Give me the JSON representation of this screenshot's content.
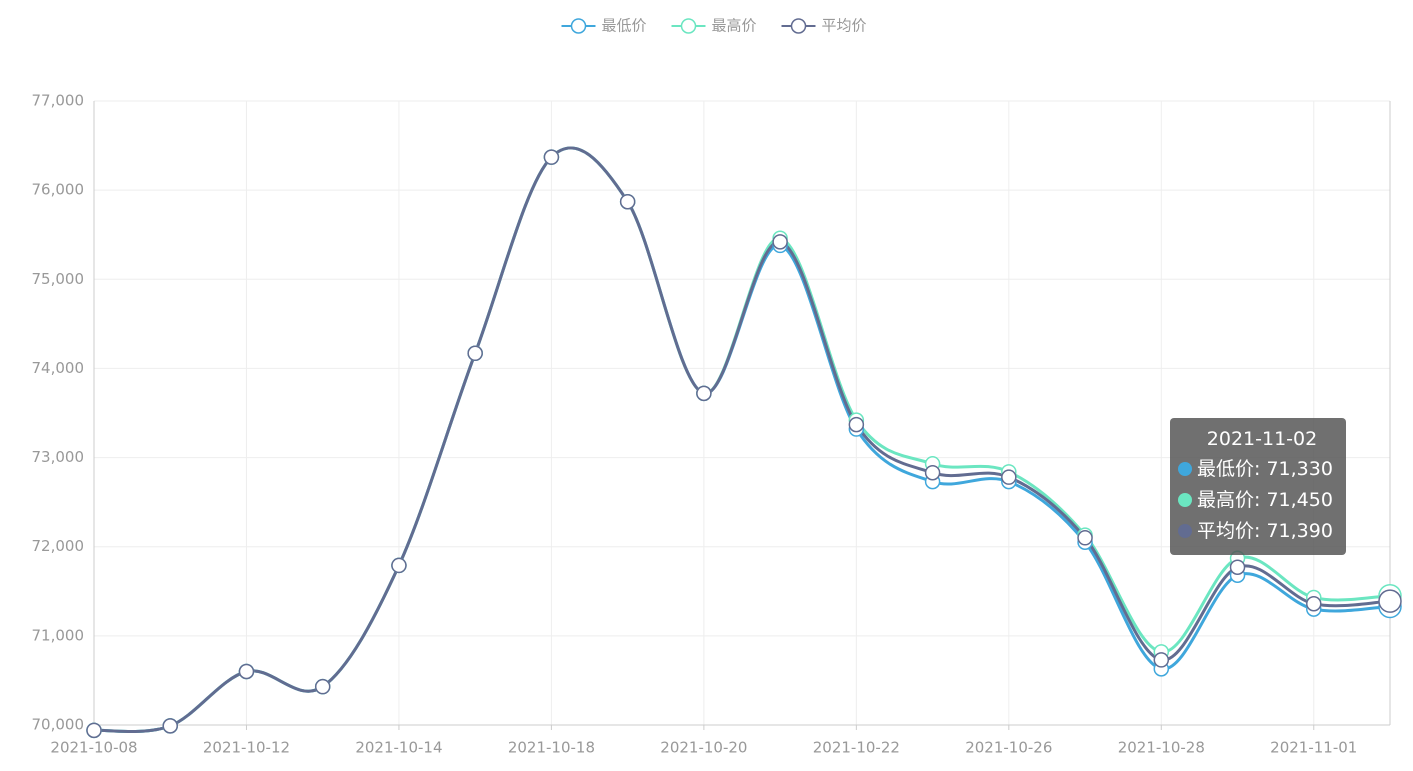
{
  "chart_data": {
    "type": "line",
    "categories": [
      "2021-10-08",
      null,
      "2021-10-12",
      null,
      "2021-10-14",
      null,
      "2021-10-18",
      null,
      "2021-10-20",
      null,
      "2021-10-22",
      null,
      "2021-10-26",
      null,
      "2021-10-28",
      null,
      "2021-11-01",
      "2021-11-02"
    ],
    "xlabel_interval": 2,
    "series": [
      {
        "name": "最低价",
        "color": "#3fa7dc",
        "values": [
          69940,
          69990,
          70600,
          70430,
          71790,
          74170,
          76370,
          75870,
          73720,
          75380,
          73320,
          72730,
          72730,
          72050,
          70630,
          71680,
          71300,
          71330
        ],
        "value_labels": [
          null,
          null,
          null,
          null,
          null,
          null,
          null,
          null,
          null,
          null,
          null,
          null,
          null,
          null,
          null,
          null,
          null,
          "71,330"
        ]
      },
      {
        "name": "最高价",
        "color": "#6be6c1",
        "values": [
          69940,
          69990,
          70600,
          70430,
          71790,
          74170,
          76370,
          75870,
          73720,
          75460,
          73420,
          72930,
          72840,
          72130,
          70820,
          71870,
          71430,
          71450
        ],
        "value_labels": [
          null,
          null,
          null,
          null,
          null,
          null,
          null,
          null,
          null,
          null,
          null,
          null,
          null,
          null,
          null,
          null,
          null,
          "71,450"
        ]
      },
      {
        "name": "平均价",
        "color": "#626c91",
        "values": [
          69940,
          69990,
          70600,
          70430,
          71790,
          74170,
          76370,
          75870,
          73720,
          75420,
          73370,
          72830,
          72780,
          72100,
          70730,
          71770,
          71360,
          71390
        ],
        "value_labels": [
          null,
          null,
          null,
          null,
          null,
          null,
          null,
          null,
          null,
          null,
          null,
          null,
          null,
          null,
          null,
          null,
          null,
          "71,390"
        ]
      }
    ],
    "ylim": [
      70000,
      77000
    ],
    "yticks": [
      {
        "value": 70000,
        "label": "70,000"
      },
      {
        "value": 71000,
        "label": "71,000"
      },
      {
        "value": 72000,
        "label": "72,000"
      },
      {
        "value": 73000,
        "label": "73,000"
      },
      {
        "value": 74000,
        "label": "74,000"
      },
      {
        "value": 75000,
        "label": "75,000"
      },
      {
        "value": 76000,
        "label": "76,000"
      },
      {
        "value": 77000,
        "label": "77,000"
      }
    ],
    "grid": true,
    "legend": "top",
    "smooth": true,
    "tooltip_index": 17
  }
}
